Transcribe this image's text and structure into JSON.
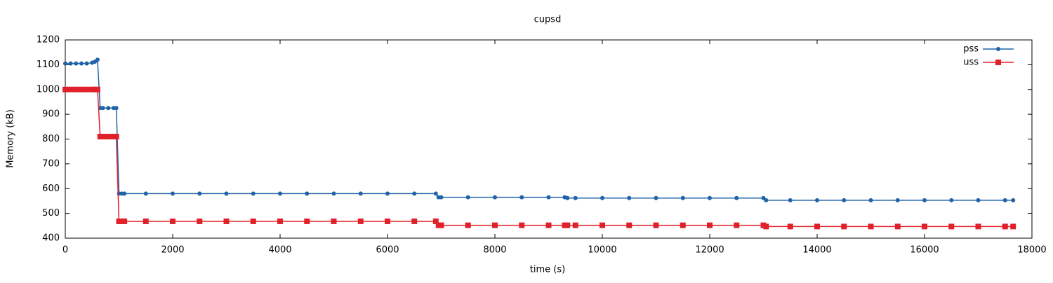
{
  "chart_data": {
    "type": "line",
    "title": "cupsd",
    "xlabel": "time (s)",
    "ylabel": "Memory (kB)",
    "x": [
      0,
      100,
      200,
      300,
      400,
      500,
      550,
      600,
      650,
      700,
      800,
      900,
      950,
      1000,
      1050,
      1100,
      1500,
      2000,
      2500,
      3000,
      3500,
      4000,
      4500,
      5000,
      5500,
      6000,
      6500,
      6900,
      6950,
      7000,
      7500,
      8000,
      8500,
      9000,
      9300,
      9350,
      9500,
      10000,
      10500,
      11000,
      11500,
      12000,
      12500,
      13000,
      13050,
      13500,
      14000,
      14500,
      15000,
      15500,
      16000,
      16500,
      17000,
      17500,
      17650
    ],
    "series": [
      {
        "name": "pss",
        "color": "#1f63a8",
        "marker": "circle",
        "values": [
          1105,
          1105,
          1105,
          1105,
          1105,
          1108,
          1112,
          1120,
          925,
          925,
          925,
          925,
          925,
          580,
          580,
          580,
          580,
          580,
          580,
          580,
          580,
          580,
          580,
          580,
          580,
          580,
          580,
          580,
          565,
          565,
          565,
          565,
          565,
          565,
          565,
          562,
          562,
          562,
          562,
          562,
          562,
          562,
          562,
          562,
          553,
          553,
          553,
          553,
          553,
          553,
          553,
          553,
          553,
          553,
          553
        ]
      },
      {
        "name": "uss",
        "color": "#e0202a",
        "marker": "square",
        "values": [
          1000,
          1000,
          1000,
          1000,
          1000,
          1000,
          1000,
          1000,
          810,
          810,
          810,
          810,
          810,
          468,
          468,
          468,
          468,
          468,
          468,
          468,
          468,
          468,
          468,
          468,
          468,
          468,
          468,
          468,
          452,
          452,
          452,
          452,
          452,
          452,
          452,
          452,
          452,
          452,
          452,
          452,
          452,
          452,
          452,
          452,
          447,
          447,
          447,
          447,
          447,
          447,
          447,
          447,
          447,
          447,
          447
        ]
      }
    ],
    "xlim": [
      0,
      18000
    ],
    "xticks": [
      0,
      2000,
      4000,
      6000,
      8000,
      10000,
      12000,
      14000,
      16000,
      18000
    ],
    "ylim": [
      400,
      1200
    ],
    "yticks": [
      400,
      500,
      600,
      700,
      800,
      900,
      1000,
      1100,
      1200
    ],
    "legend": "top-right",
    "grid": false
  }
}
